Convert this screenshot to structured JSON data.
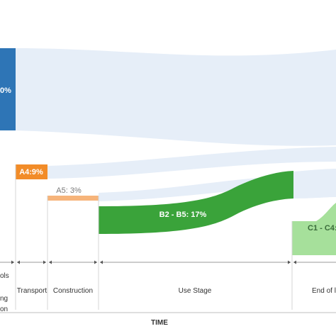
{
  "labels": {
    "a1_a3": "0%",
    "a4": "A4:9%",
    "a5": "A5: 3%",
    "b2_b5": "B2 - B5: 17%",
    "c1_c4": "C1 - C4:"
  },
  "stages": {
    "materials_line1": "ols",
    "materials_line2": "ng",
    "materials_line3": "on",
    "transport": "Transport",
    "construction": "Construction",
    "use_stage": "Use Stage",
    "end_of_life": "End of l"
  },
  "axis_title": "TIME",
  "colors": {
    "blue": "#2e75b6",
    "orange": "#f28c28",
    "light_orange": "#f6b47a",
    "green": "#3aa33a",
    "light_green": "#a6e09b",
    "flow": "#e6eef8"
  }
}
